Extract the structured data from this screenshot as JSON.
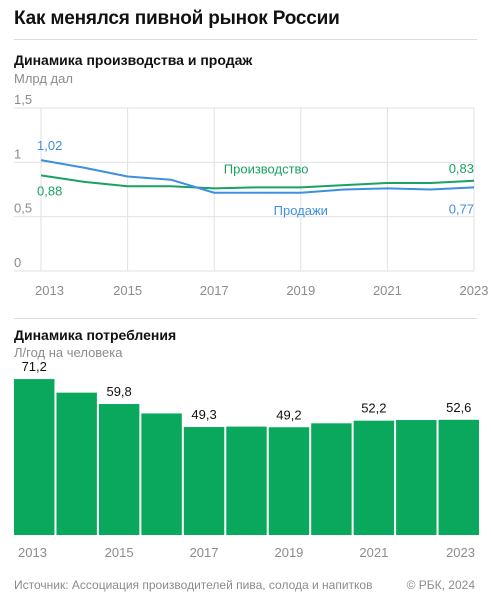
{
  "header": {
    "title": "Как менялся пивной рынок России"
  },
  "production_section": {
    "title": "Динамика производства и продаж",
    "unit": "Млрд дал"
  },
  "consumption_section": {
    "title": "Динамика потребления",
    "unit": "Л/год на человека"
  },
  "footer": {
    "source": "Источник: Ассоциация производителей пива, солода и напитков",
    "copyright": "© РБК, 2024"
  },
  "colors": {
    "production": "#1aa263",
    "sales": "#3d8fe0",
    "bars": "#0aa85c",
    "grid": "#e2e2e2",
    "axis_text": "#8c8c8c"
  },
  "chart_data": [
    {
      "type": "line",
      "title": "Динамика производства и продаж",
      "ylabel": "Млрд дал",
      "x": [
        2013,
        2014,
        2015,
        2016,
        2017,
        2018,
        2019,
        2020,
        2021,
        2022,
        2023
      ],
      "x_tick_labels": [
        "2013",
        "2015",
        "2017",
        "2019",
        "2021",
        "2023"
      ],
      "y_ticks": [
        {
          "value": 0,
          "label": "0"
        },
        {
          "value": 0.5,
          "label": "0,5"
        },
        {
          "value": 1,
          "label": "1"
        },
        {
          "value": 1.5,
          "label": "1,5"
        }
      ],
      "ylim": [
        0,
        1.5
      ],
      "grid": true,
      "series": [
        {
          "name": "Производство",
          "values": [
            0.88,
            0.82,
            0.78,
            0.78,
            0.76,
            0.77,
            0.77,
            0.79,
            0.81,
            0.81,
            0.83
          ],
          "start_label": "0,88",
          "end_label": "0,83"
        },
        {
          "name": "Продажи",
          "values": [
            1.02,
            0.95,
            0.87,
            0.84,
            0.72,
            0.72,
            0.72,
            0.75,
            0.76,
            0.75,
            0.77
          ],
          "start_label": "1,02",
          "end_label": "0,77"
        }
      ]
    },
    {
      "type": "bar",
      "title": "Динамика потребления",
      "ylabel": "Л/год на человека",
      "categories": [
        "2013",
        "2014",
        "2015",
        "2016",
        "2017",
        "2018",
        "2019",
        "2020",
        "2021",
        "2022",
        "2023"
      ],
      "x_tick_labels": [
        "2013",
        "2015",
        "2017",
        "2019",
        "2021",
        "2023"
      ],
      "values": [
        71.2,
        65.0,
        59.8,
        55.5,
        49.3,
        49.5,
        49.2,
        51.0,
        52.2,
        52.5,
        52.6
      ],
      "value_labels": [
        {
          "category": "2013",
          "text": "71,2"
        },
        {
          "category": "2015",
          "text": "59,8"
        },
        {
          "category": "2017",
          "text": "49,3"
        },
        {
          "category": "2019",
          "text": "49,2"
        },
        {
          "category": "2021",
          "text": "52,2"
        },
        {
          "category": "2023",
          "text": "52,6"
        }
      ]
    }
  ]
}
